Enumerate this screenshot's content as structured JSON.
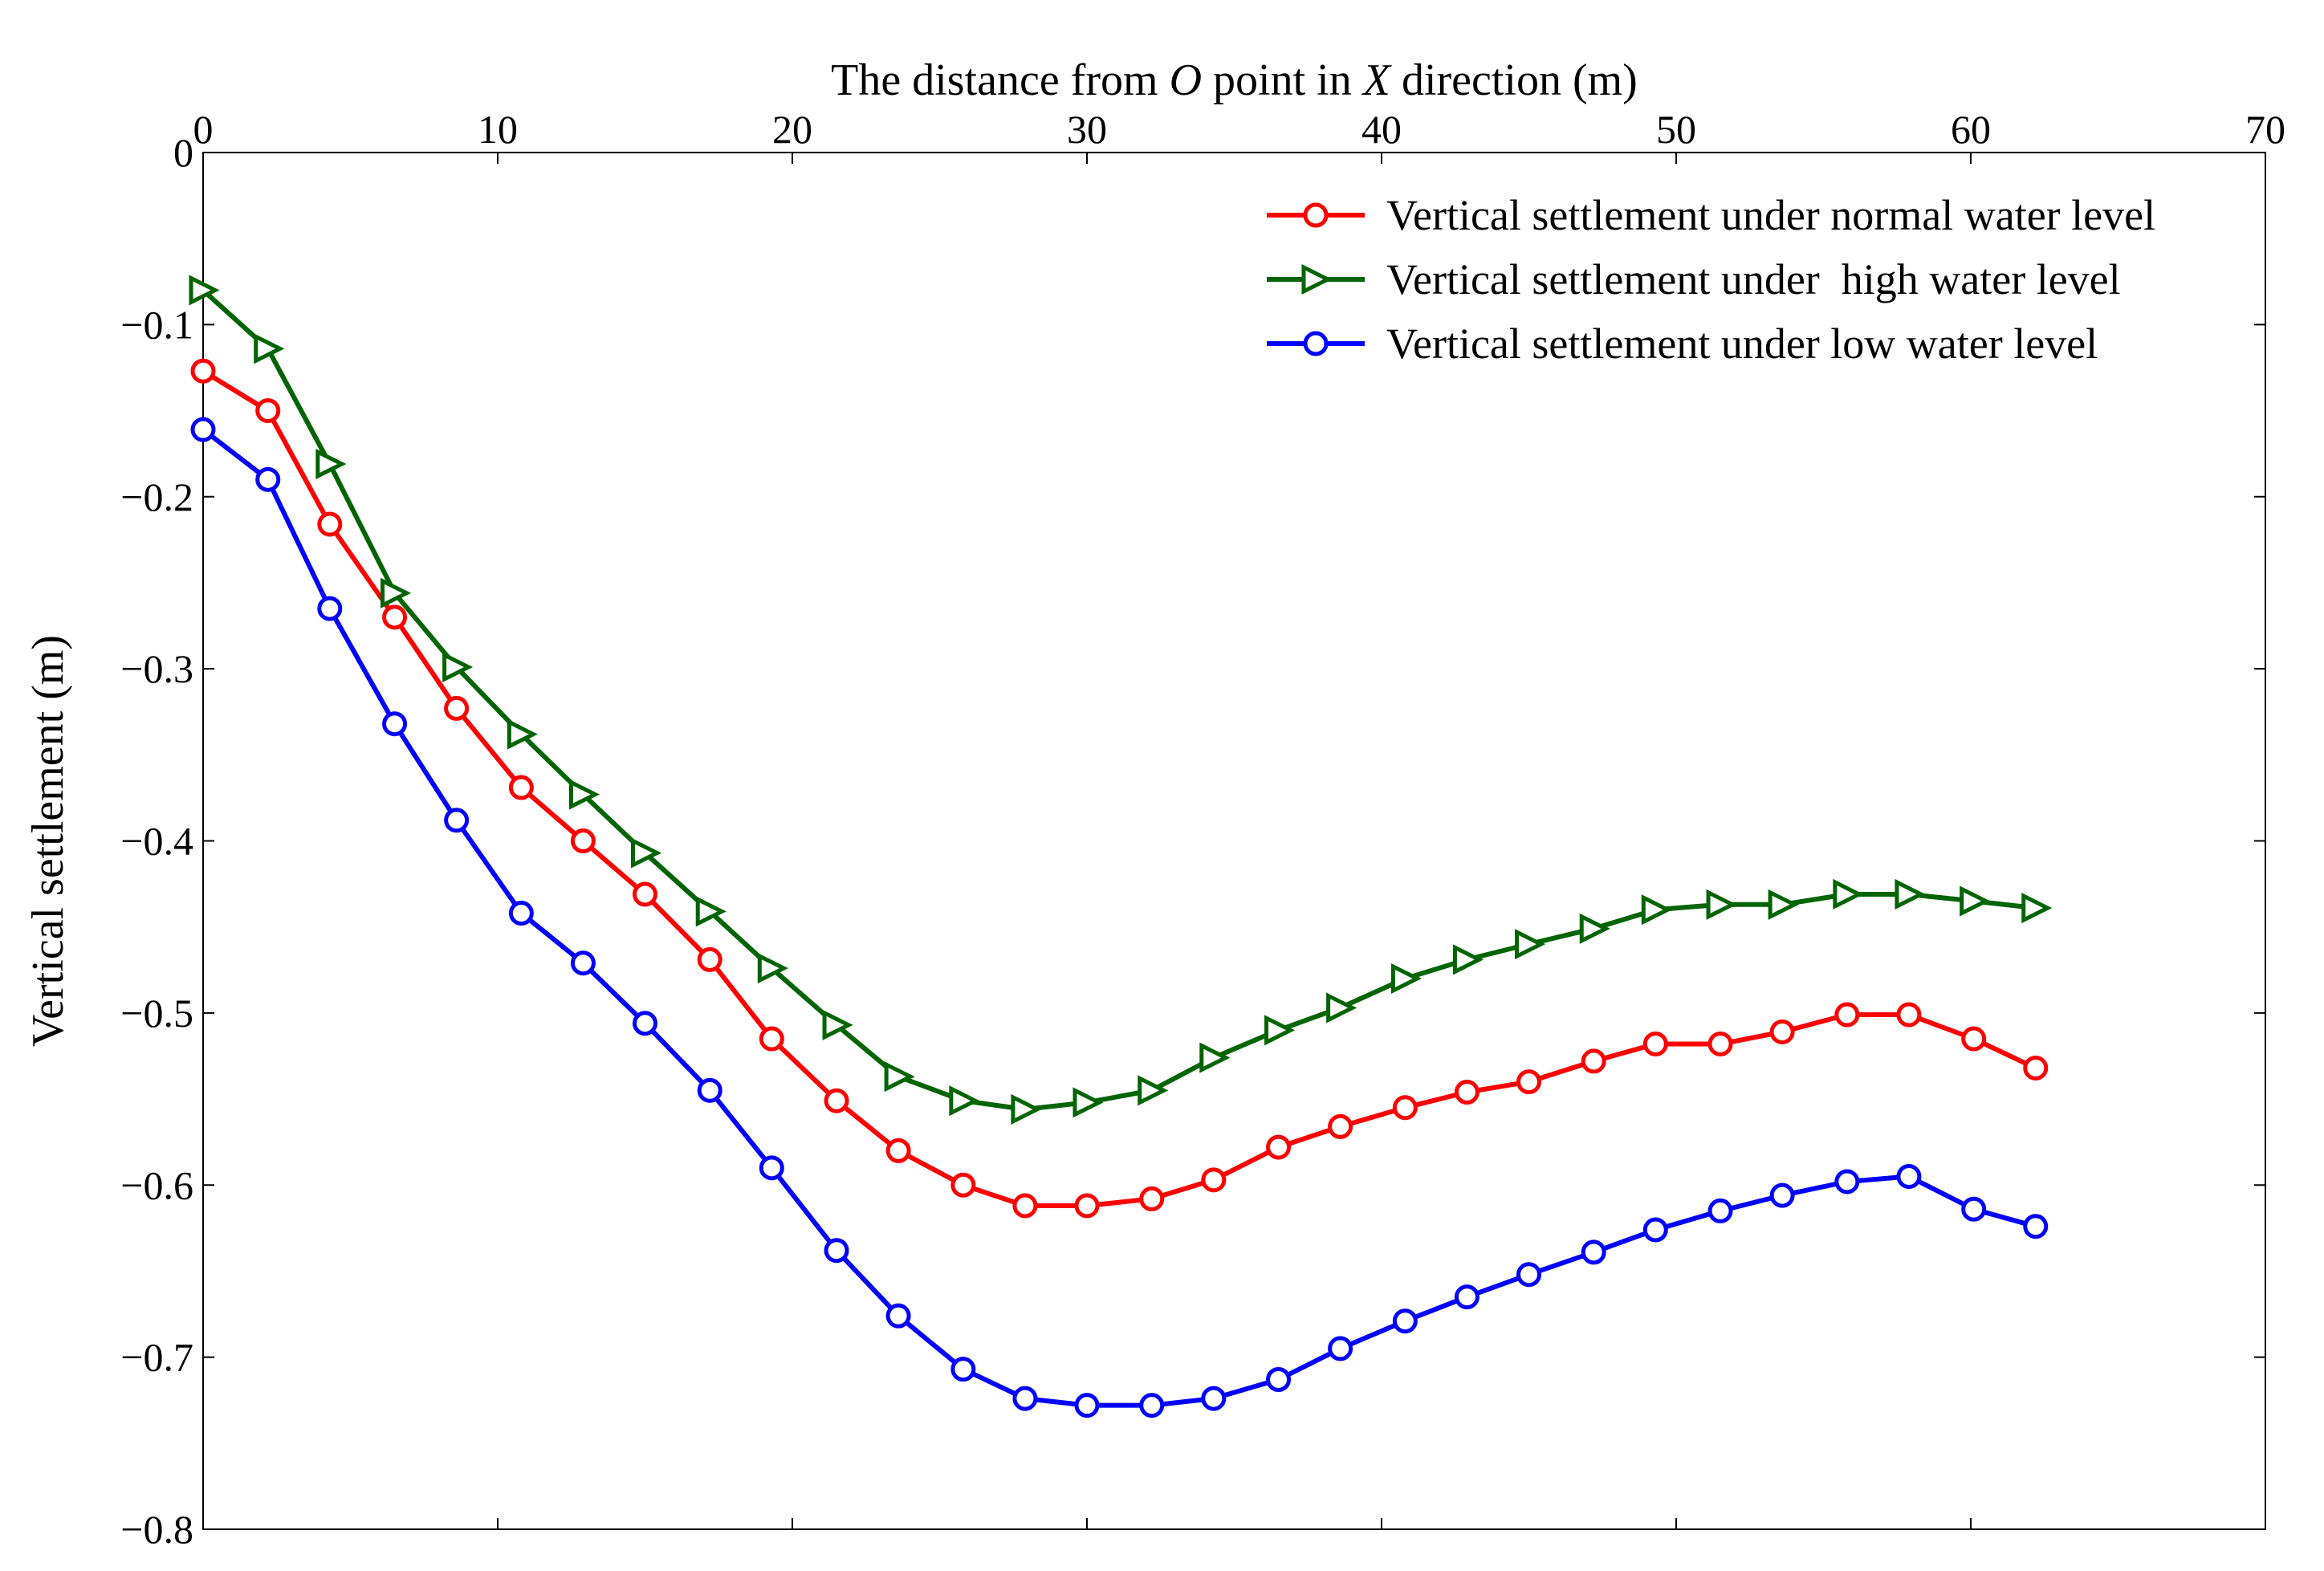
{
  "chart_data": {
    "type": "line",
    "title": "",
    "xlabel_parts": [
      "The distance from ",
      "O",
      " point in ",
      "X",
      " direction (m)"
    ],
    "xlabel": "The distance from O point in X direction (m)",
    "ylabel": "Vertical settlement (m)",
    "xlim": [
      0,
      70
    ],
    "ylim": [
      -0.8,
      0
    ],
    "x_ticks": [
      0,
      10,
      20,
      30,
      40,
      50,
      60,
      70
    ],
    "x_tick_labels": [
      "0",
      "10",
      "20",
      "30",
      "40",
      "50",
      "60",
      "70"
    ],
    "y_ticks": [
      0,
      -0.1,
      -0.2,
      -0.3,
      -0.4,
      -0.5,
      -0.6,
      -0.7,
      -0.8
    ],
    "y_tick_labels": [
      "0",
      "−0.1",
      "−0.2",
      "−0.3",
      "−0.4",
      "−0.5",
      "−0.6",
      "−0.7",
      "−0.8"
    ],
    "x_axis_position": "top",
    "grid": false,
    "legend_position": "top-right",
    "x": [
      0,
      2.2,
      4.3,
      6.5,
      8.6,
      10.8,
      12.9,
      15.0,
      17.2,
      19.3,
      21.5,
      23.6,
      25.8,
      27.9,
      30.0,
      32.2,
      34.3,
      36.5,
      38.6,
      40.8,
      42.9,
      45.0,
      47.2,
      49.3,
      51.5,
      53.6,
      55.8,
      57.9,
      60.1,
      62.2
    ],
    "series": [
      {
        "name": "Vertical settlement under normal water level",
        "color": "#ff0000",
        "marker": "circle",
        "values": [
          -0.127,
          -0.15,
          -0.216,
          -0.27,
          -0.323,
          -0.369,
          -0.4,
          -0.431,
          -0.469,
          -0.515,
          -0.551,
          -0.58,
          -0.6,
          -0.612,
          -0.612,
          -0.608,
          -0.597,
          -0.578,
          -0.566,
          -0.555,
          -0.546,
          -0.54,
          -0.528,
          -0.518,
          -0.518,
          -0.511,
          -0.501,
          -0.501,
          -0.515,
          -0.532
        ]
      },
      {
        "name": "Vertical settlement under  high water level",
        "color": "#006400",
        "marker": "triangle-right",
        "values": [
          -0.08,
          -0.114,
          -0.181,
          -0.256,
          -0.299,
          -0.338,
          -0.373,
          -0.407,
          -0.441,
          -0.474,
          -0.507,
          -0.537,
          -0.551,
          -0.556,
          -0.552,
          -0.545,
          -0.526,
          -0.51,
          -0.497,
          -0.48,
          -0.469,
          -0.46,
          -0.451,
          -0.44,
          -0.437,
          -0.437,
          -0.431,
          -0.431,
          -0.435,
          -0.439
        ]
      },
      {
        "name": "Vertical settlement under low water level",
        "color": "#0000ff",
        "marker": "circle",
        "values": [
          -0.161,
          -0.19,
          -0.265,
          -0.332,
          -0.388,
          -0.442,
          -0.471,
          -0.506,
          -0.545,
          -0.59,
          -0.638,
          -0.676,
          -0.707,
          -0.724,
          -0.728,
          -0.728,
          -0.724,
          -0.713,
          -0.695,
          -0.679,
          -0.665,
          -0.652,
          -0.639,
          -0.626,
          -0.615,
          -0.606,
          -0.598,
          -0.595,
          -0.614,
          -0.624
        ]
      }
    ]
  }
}
